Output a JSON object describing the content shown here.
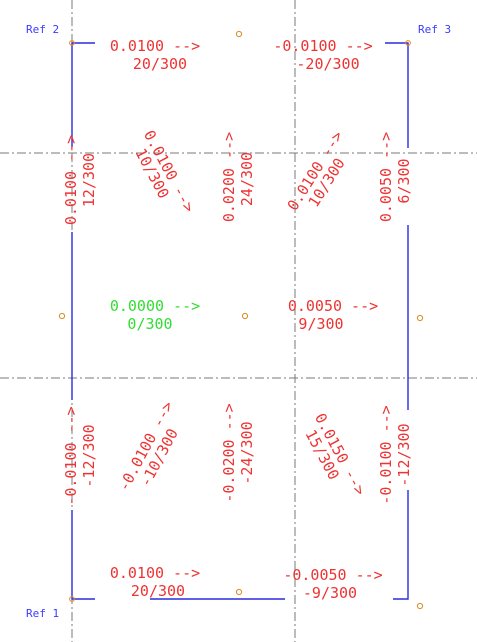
{
  "references": {
    "ref1": "Ref 1",
    "ref2": "Ref 2",
    "ref3": "Ref 3"
  },
  "labels": {
    "top_left": {
      "line1": "0.0100 -->",
      "line2": "20/300"
    },
    "top_right": {
      "line1": "-0.0100 -->",
      "line2": "-20/300"
    },
    "upper_left_edge": {
      "line1": "0.0100 -->",
      "line2": "12/300"
    },
    "upper_diag_1": {
      "line1": "0.0100 -->",
      "line2": "10/300"
    },
    "upper_mid_vert": {
      "line1": "0.0200 -->",
      "line2": "24/300"
    },
    "upper_diag_2": {
      "line1": "0.0100 -->",
      "line2": "10/300"
    },
    "upper_right_edge": {
      "line1": "0.0050 -->",
      "line2": "6/300"
    },
    "center_left": {
      "line1": "0.0000 -->",
      "line2": "0/300"
    },
    "center_right": {
      "line1": "0.0050 -->",
      "line2": "9/300"
    },
    "lower_left_edge": {
      "line1": "-0.0100 -->",
      "line2": "-12/300"
    },
    "lower_diag_1": {
      "line1": "-0.0100 -->",
      "line2": "-10/300"
    },
    "lower_mid_vert": {
      "line1": "-0.0200 -->",
      "line2": "-24/300"
    },
    "lower_diag_2": {
      "line1": "0.0150 -->",
      "line2": "15/300"
    },
    "lower_right_edge": {
      "line1": "-0.0100 -->",
      "line2": "-12/300"
    },
    "bottom_left": {
      "line1": "0.0100 -->",
      "line2": "20/300"
    },
    "bottom_right": {
      "line1": "-0.0050 -->",
      "line2": "-9/300"
    }
  },
  "colors": {
    "frame": "#2a2ae0",
    "label": "#ee3333",
    "zero_label": "#33dd33",
    "reference": "#3a3aff",
    "centerline": "#7a7a7a",
    "marker": "#e08a1a"
  }
}
